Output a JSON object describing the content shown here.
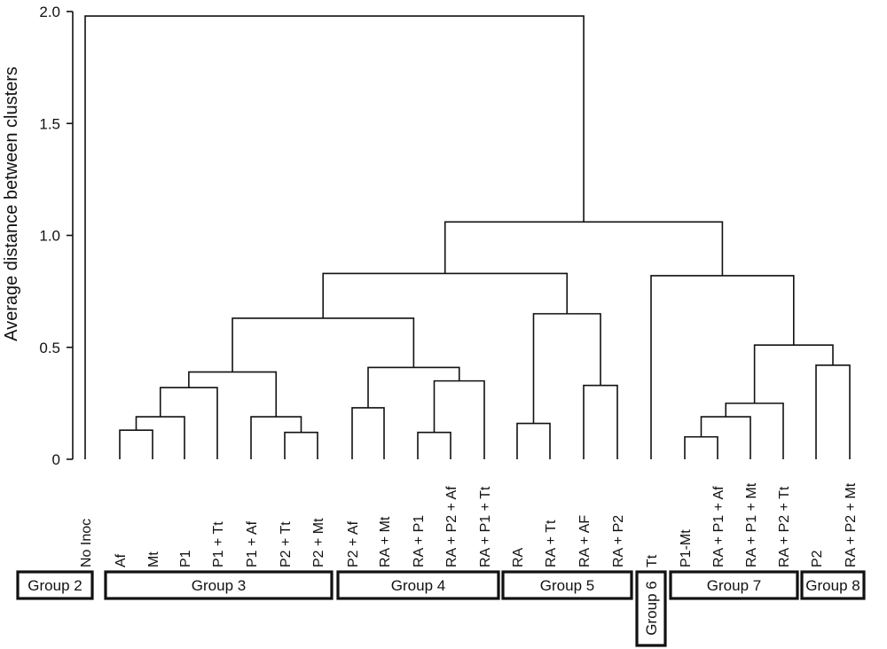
{
  "chart_data": {
    "type": "dendrogram",
    "title": "",
    "ylabel": "Average distance between clusters",
    "ylim": [
      0,
      2.0
    ],
    "yticks": [
      "0",
      "0.5",
      "1.0",
      "1.5",
      "2.0"
    ],
    "leaves": [
      "No Inoc",
      "Af",
      "Mt",
      "P1",
      "P1 + Tt",
      "P1 + Af",
      "P2 + Tt",
      "P2 + Mt",
      "P2 + Af",
      "RA + Mt",
      "RA + P1",
      "RA + P2 + Af",
      "RA + P1 + Tt",
      "RA",
      "RA + Tt",
      "RA + AF",
      "RA + P2",
      "Tt",
      "P1-Mt",
      "RA + P1 + Af",
      "RA + P1 + Mt",
      "RA + P2 + Tt",
      "P2",
      "RA + P2 + Mt"
    ],
    "merges": [
      {
        "children": [
          "Af",
          "Mt"
        ],
        "height": 0.13
      },
      {
        "children": [
          0,
          "P1"
        ],
        "height": 0.19
      },
      {
        "children": [
          1,
          "P1 + Tt"
        ],
        "height": 0.32
      },
      {
        "children": [
          "P2 + Tt",
          "P2 + Mt"
        ],
        "height": 0.12
      },
      {
        "children": [
          "P1 + Af",
          3
        ],
        "height": 0.19
      },
      {
        "children": [
          2,
          4
        ],
        "height": 0.39
      },
      {
        "children": [
          "P2 + Af",
          "RA + Mt"
        ],
        "height": 0.23
      },
      {
        "children": [
          "RA + P1",
          "RA + P2 + Af"
        ],
        "height": 0.12
      },
      {
        "children": [
          7,
          "RA + P1 + Tt"
        ],
        "height": 0.35
      },
      {
        "children": [
          6,
          8
        ],
        "height": 0.41
      },
      {
        "children": [
          5,
          9
        ],
        "height": 0.63
      },
      {
        "children": [
          "RA",
          "RA + Tt"
        ],
        "height": 0.16
      },
      {
        "children": [
          "RA + AF",
          "RA + P2"
        ],
        "height": 0.33
      },
      {
        "children": [
          11,
          12
        ],
        "height": 0.65
      },
      {
        "children": [
          10,
          13
        ],
        "height": 0.83
      },
      {
        "children": [
          "P1-Mt",
          "RA + P1 + Af"
        ],
        "height": 0.1
      },
      {
        "children": [
          15,
          "RA + P1 + Mt"
        ],
        "height": 0.19
      },
      {
        "children": [
          16,
          "RA + P2 + Tt"
        ],
        "height": 0.25
      },
      {
        "children": [
          "P2",
          "RA + P2 + Mt"
        ],
        "height": 0.42
      },
      {
        "children": [
          17,
          18
        ],
        "height": 0.51
      },
      {
        "children": [
          "Tt",
          19
        ],
        "height": 0.82
      },
      {
        "children": [
          14,
          20
        ],
        "height": 1.06
      },
      {
        "children": [
          "No Inoc",
          21
        ],
        "height": 1.98
      }
    ],
    "groups": [
      {
        "label": "Group 2",
        "members": [
          "No Inoc"
        ],
        "orientation": "horizontal"
      },
      {
        "label": "Group 3",
        "members": [
          "Af",
          "Mt",
          "P1",
          "P1 + Tt",
          "P1 + Af",
          "P2 + Tt",
          "P2 + Mt"
        ],
        "orientation": "horizontal"
      },
      {
        "label": "Group 4",
        "members": [
          "P2 + Af",
          "RA + Mt",
          "RA + P1",
          "RA + P2 + Af",
          "RA + P1 + Tt"
        ],
        "orientation": "horizontal"
      },
      {
        "label": "Group 5",
        "members": [
          "RA",
          "RA + Tt",
          "RA + AF",
          "RA + P2"
        ],
        "orientation": "horizontal"
      },
      {
        "label": "Group 6",
        "members": [
          "Tt"
        ],
        "orientation": "vertical"
      },
      {
        "label": "Group 7",
        "members": [
          "P1-Mt",
          "RA + P1 + Af",
          "RA + P1 + Mt",
          "RA + P2 + Tt"
        ],
        "orientation": "horizontal"
      },
      {
        "label": "Group 8",
        "members": [
          "P2",
          "RA + P2 + Mt"
        ],
        "orientation": "horizontal"
      }
    ],
    "grid": false,
    "legend": "none"
  }
}
